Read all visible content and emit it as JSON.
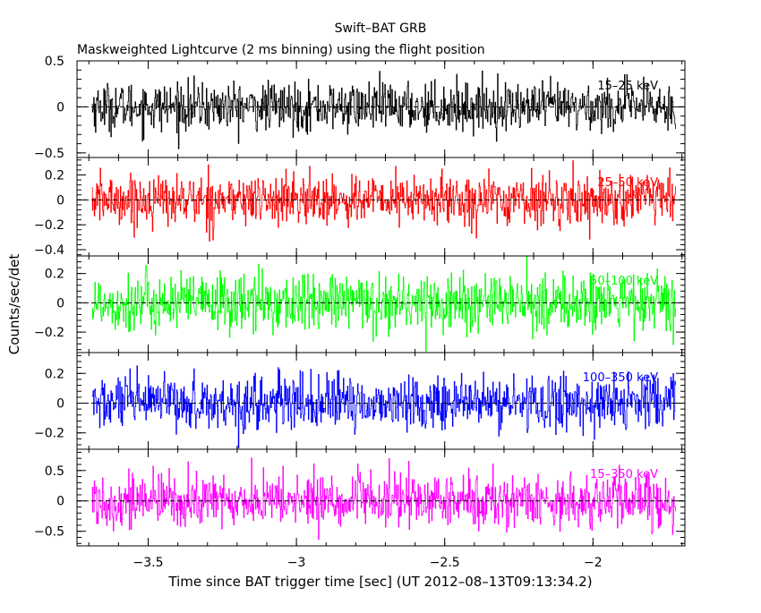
{
  "chart_data": {
    "type": "line",
    "title": "Swift–BAT GRB",
    "subtitle": "Maskweighted Lightcurve (2 ms binning) using the flight position",
    "xlabel": "Time since BAT trigger time [sec] (UT 2012–08–13T09:13:34.2)",
    "ylabel": "Counts/sec/det",
    "xlim": [
      -3.74,
      -1.69
    ],
    "x_ticks": [
      -3.5,
      -3,
      -2.5,
      -2
    ],
    "x_tick_labels": [
      "−3.5",
      "−3",
      "−2.5",
      "−2"
    ],
    "x_start": -3.69,
    "x_end": -1.72,
    "bin_width": 0.002,
    "grid": false,
    "legend": "none (band labels at top-right of each panel)",
    "panels": [
      {
        "band": "15–25 keV",
        "color": "#000000",
        "ylim": [
          -0.55,
          0.5
        ],
        "y_ticks": [
          -0.5,
          0,
          0.5
        ],
        "y_tick_labels": [
          "−0.5",
          "0",
          "0.5"
        ],
        "noise_sigma": 0.13
      },
      {
        "band": "25–50 keV",
        "color": "#ff0000",
        "ylim": [
          -0.45,
          0.34
        ],
        "y_ticks": [
          -0.4,
          -0.2,
          0,
          0.2
        ],
        "y_tick_labels": [
          "−0.4",
          "−0.2",
          "0",
          "0.2"
        ],
        "noise_sigma": 0.1
      },
      {
        "band": "50–100 keV",
        "color": "#00ff00",
        "ylim": [
          -0.34,
          0.32
        ],
        "y_ticks": [
          -0.2,
          0,
          0.2
        ],
        "y_tick_labels": [
          "−0.2",
          "0",
          "0.2"
        ],
        "noise_sigma": 0.1
      },
      {
        "band": "100–350 keV",
        "color": "#0000ff",
        "ylim": [
          -0.31,
          0.34
        ],
        "y_ticks": [
          -0.2,
          0,
          0.2
        ],
        "y_tick_labels": [
          "−0.2",
          "0",
          "0.2"
        ],
        "noise_sigma": 0.09
      },
      {
        "band": "15–350 keV",
        "color": "#ff00ff",
        "ylim": [
          -0.74,
          0.85
        ],
        "y_ticks": [
          -0.5,
          0,
          0.5
        ],
        "y_tick_labels": [
          "−0.5",
          "0",
          "0.5"
        ],
        "noise_sigma": 0.22
      }
    ]
  }
}
